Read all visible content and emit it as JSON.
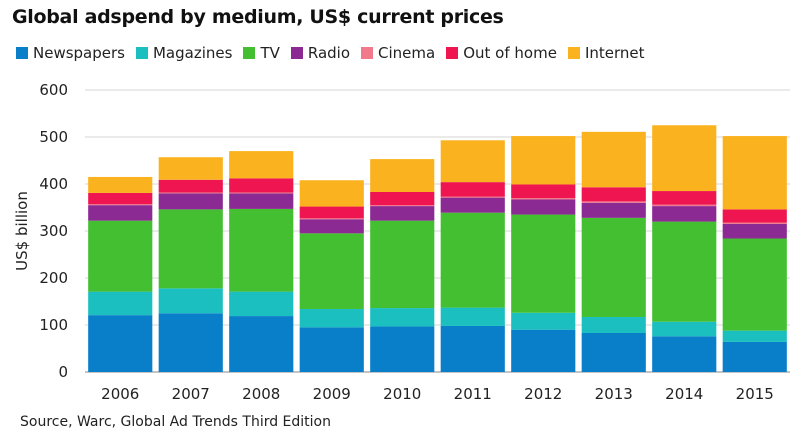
{
  "title": "Global adspend by medium, US$ current prices",
  "source": "Source, Warc, Global Ad Trends Third Edition",
  "legend": [
    {
      "label": "Newspapers",
      "color": "#0a7fc9"
    },
    {
      "label": "Magazines",
      "color": "#1bbfbf"
    },
    {
      "label": "TV",
      "color": "#44bf32"
    },
    {
      "label": "Radio",
      "color": "#8b2a92"
    },
    {
      "label": "Cinema",
      "color": "#f07a8c"
    },
    {
      "label": "Out of home",
      "color": "#ef1550"
    },
    {
      "label": "Internet",
      "color": "#fbb21f"
    }
  ],
  "chart_data": {
    "type": "bar",
    "stacked": true,
    "categories": [
      "2006",
      "2007",
      "2008",
      "2009",
      "2010",
      "2011",
      "2012",
      "2013",
      "2014",
      "2015"
    ],
    "series": [
      {
        "name": "Newspapers",
        "color": "#0a7fc9",
        "values": [
          121,
          125,
          119,
          95,
          97,
          98,
          90,
          83,
          76,
          64
        ]
      },
      {
        "name": "Magazines",
        "color": "#1bbfbf",
        "values": [
          50,
          53,
          52,
          39,
          39,
          39,
          36,
          34,
          31,
          24
        ]
      },
      {
        "name": "TV",
        "color": "#44bf32",
        "values": [
          151,
          168,
          176,
          161,
          186,
          202,
          209,
          211,
          213,
          196
        ]
      },
      {
        "name": "Radio",
        "color": "#8b2a92",
        "values": [
          33,
          34,
          33,
          30,
          31,
          32,
          32,
          32,
          33,
          31
        ]
      },
      {
        "name": "Cinema",
        "color": "#f07a8c",
        "values": [
          2,
          2,
          2,
          2,
          2,
          2,
          3,
          3,
          3,
          3
        ]
      },
      {
        "name": "Out of home",
        "color": "#ef1550",
        "values": [
          24,
          27,
          30,
          25,
          28,
          31,
          29,
          30,
          29,
          28
        ]
      },
      {
        "name": "Internet",
        "color": "#fbb21f",
        "values": [
          34,
          48,
          58,
          56,
          70,
          89,
          103,
          118,
          140,
          156
        ]
      }
    ],
    "ylabel": "US$ billion",
    "xlabel": "",
    "ylim": [
      0,
      600
    ],
    "yticks": [
      0,
      100,
      200,
      300,
      400,
      500,
      600
    ],
    "grid": true,
    "legend_position": "top"
  }
}
